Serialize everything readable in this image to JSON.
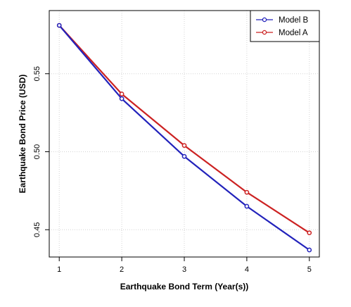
{
  "chart_data": {
    "type": "line",
    "title": "",
    "xlabel": "Earthquake Bond Term (Year(s))",
    "ylabel": "Earthquake Bond Price (USD)",
    "x": [
      1,
      2,
      3,
      4,
      5
    ],
    "x_ticks": [
      "1",
      "2",
      "3",
      "4",
      "5"
    ],
    "y_ticks": [
      "0.45",
      "0.50",
      "0.55"
    ],
    "y_tick_values": [
      0.45,
      0.5,
      0.55
    ],
    "xlim": [
      0.84,
      5.16
    ],
    "ylim": [
      0.4325,
      0.5905
    ],
    "grid": true,
    "legend_position": "top-right",
    "series": [
      {
        "name": "Model B",
        "color": "#2222bb",
        "marker": "circle",
        "values": [
          0.581,
          0.534,
          0.497,
          0.465,
          0.437
        ]
      },
      {
        "name": "Model A",
        "color": "#cc2222",
        "marker": "circle",
        "values": [
          0.581,
          0.537,
          0.504,
          0.474,
          0.448
        ]
      }
    ]
  }
}
